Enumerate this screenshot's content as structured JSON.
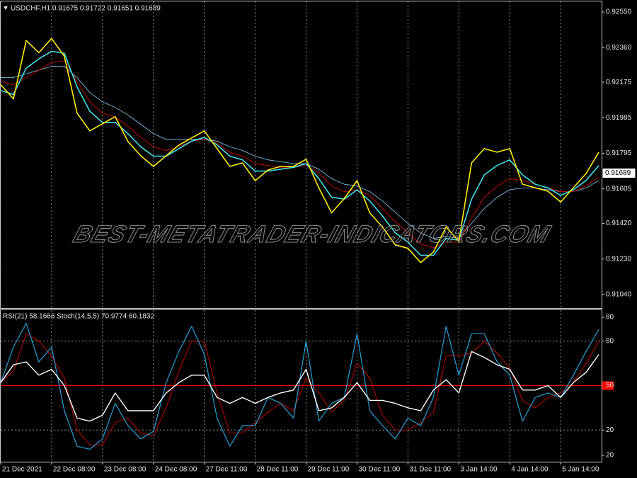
{
  "chart_data": [
    {
      "type": "line",
      "title": "USDCHF,H1  0.91675 0.91722 0.91651 0.91689",
      "watermark": "BEST-METATRADER-INDICATORS.COM",
      "last_price": 0.91689,
      "x": [
        0,
        6,
        12,
        18,
        24,
        30,
        36,
        42,
        48,
        54,
        60,
        66,
        72,
        78,
        84,
        90,
        96,
        102,
        108,
        114,
        120,
        126,
        132,
        138,
        144,
        150,
        156,
        162,
        168,
        174,
        180,
        186,
        192,
        198,
        204,
        210,
        216,
        222,
        228,
        234,
        240,
        246,
        252,
        258,
        264,
        270,
        276,
        282
      ],
      "xlim": [
        0,
        283.3
      ],
      "ylim": [
        0.90964,
        0.92607
      ],
      "yticks": [
        {
          "value": 0.9255,
          "label": "0.92550"
        },
        {
          "value": 0.9236,
          "label": "0.92360"
        },
        0.92175,
        0.91985,
        0.91795,
        0.91605,
        {
          "value": 0.9142,
          "label": "0.91420"
        },
        {
          "value": 0.9123,
          "label": "0.91230"
        },
        {
          "value": 0.9104,
          "label": "0.91040"
        }
      ],
      "grid": true,
      "series": [
        {
          "color": "#87cefa",
          "width": 0.8,
          "values": [
            0.922,
            0.922,
            0.9222,
            0.9224,
            0.9226,
            0.9226,
            0.922,
            0.9212,
            0.9207,
            0.9204,
            0.92,
            0.9195,
            0.919,
            0.9187,
            0.9187,
            0.9187,
            0.9187,
            0.9186,
            0.9183,
            0.9181,
            0.9178,
            0.9176,
            0.9175,
            0.9174,
            0.9174,
            0.9171,
            0.9166,
            0.9163,
            0.9162,
            0.9159,
            0.9154,
            0.9148,
            0.9142,
            0.9137,
            0.9134,
            0.9135,
            0.9134,
            0.9142,
            0.915,
            0.9156,
            0.916,
            0.9161,
            0.9161,
            0.916,
            0.9159,
            0.9159,
            0.9161,
            0.9165
          ]
        },
        {
          "color": "#c00000",
          "width": 1,
          "values": [
            0.9218,
            0.9216,
            0.922,
            0.9224,
            0.9228,
            0.9229,
            0.9218,
            0.9207,
            0.9201,
            0.9199,
            0.9194,
            0.9188,
            0.9183,
            0.9181,
            0.9183,
            0.9186,
            0.9187,
            0.9185,
            0.918,
            0.9178,
            0.9174,
            0.9173,
            0.9172,
            0.9172,
            0.9173,
            0.9169,
            0.9162,
            0.9159,
            0.916,
            0.9157,
            0.915,
            0.9143,
            0.9137,
            0.9131,
            0.9129,
            0.9132,
            0.9132,
            0.9145,
            0.9156,
            0.9162,
            0.9166,
            0.9165,
            0.9163,
            0.9161,
            0.9159,
            0.9159,
            0.9162,
            0.9167
          ]
        },
        {
          "color": "#40e0e8",
          "width": 1.6,
          "values": [
            0.9213,
            0.9211,
            0.9225,
            0.923,
            0.9234,
            0.9233,
            0.9215,
            0.9202,
            0.9196,
            0.9196,
            0.919,
            0.9183,
            0.9178,
            0.9178,
            0.9182,
            0.9186,
            0.9188,
            0.9184,
            0.9178,
            0.9176,
            0.917,
            0.917,
            0.9171,
            0.9172,
            0.9174,
            0.9166,
            0.9156,
            0.9155,
            0.916,
            0.9154,
            0.9146,
            0.9137,
            0.9132,
            0.9125,
            0.9125,
            0.9134,
            0.9133,
            0.9155,
            0.9168,
            0.9173,
            0.9176,
            0.9168,
            0.9163,
            0.9161,
            0.9157,
            0.916,
            0.9165,
            0.9173
          ]
        },
        {
          "color": "#ffee00",
          "width": 1.6,
          "values": [
            0.92162,
            0.92086,
            0.92398,
            0.92333,
            0.92409,
            0.92314,
            0.9201,
            0.91915,
            0.91953,
            0.91991,
            0.91858,
            0.91782,
            0.91725,
            0.91782,
            0.91839,
            0.91877,
            0.91915,
            0.9182,
            0.91725,
            0.91744,
            0.91649,
            0.91706,
            0.91725,
            0.91725,
            0.91763,
            0.9161,
            0.91477,
            0.91553,
            0.91649,
            0.91477,
            0.91401,
            0.91306,
            0.91287,
            0.91211,
            0.91268,
            0.91401,
            0.91325,
            0.91744,
            0.9182,
            0.91801,
            0.9182,
            0.9163,
            0.91611,
            0.91592,
            0.91534,
            0.91611,
            0.91687,
            0.91801
          ]
        }
      ]
    },
    {
      "type": "line",
      "title": "RSI(21) 58.1666  Stoch(14,5,5) 70.9774 60.1832",
      "x": [
        0,
        6,
        12,
        18,
        24,
        30,
        36,
        42,
        48,
        54,
        60,
        66,
        72,
        78,
        84,
        90,
        96,
        102,
        108,
        114,
        120,
        126,
        132,
        138,
        144,
        150,
        156,
        162,
        168,
        174,
        180,
        186,
        192,
        198,
        204,
        210,
        216,
        222,
        228,
        234,
        240,
        246,
        252,
        258,
        264,
        270,
        276,
        282
      ],
      "xlim": [
        0,
        283.3
      ],
      "xticks": [
        {
          "value": 0,
          "label": "21 Dec 2021"
        },
        {
          "value": 24,
          "label": "22 Dec 08:00"
        },
        {
          "value": 48,
          "label": "23 Dec 08:00"
        },
        {
          "value": 72,
          "label": "24 Dec 08:00"
        },
        {
          "value": 96,
          "label": "27 Dec 11:00"
        },
        {
          "value": 120,
          "label": "28 Dec 11:00"
        },
        {
          "value": 144,
          "label": "29 Dec 11:00"
        },
        {
          "value": 168,
          "label": "30 Dec 11:00"
        },
        {
          "value": 192,
          "label": "31 Dec 11:00"
        },
        {
          "value": 216,
          "label": "3 Jan 14:00"
        },
        {
          "value": 240,
          "label": "4 Jan 14:00"
        },
        {
          "value": 264,
          "label": "5 Jan 14:00"
        }
      ],
      "ylim": [
        -1.4,
        100.9
      ],
      "yticks": [
        20,
        50,
        80
      ],
      "y2lim": [
        17.2,
        83.1
      ],
      "y2ticks": [
        20,
        80
      ],
      "level_line": 50,
      "level_color": "#ff0000",
      "series": [
        {
          "color": "#c00000",
          "width": 1,
          "values": [
            52,
            60,
            85,
            80,
            70,
            55,
            20,
            10,
            10,
            25,
            28,
            18,
            16,
            35,
            60,
            80,
            80,
            45,
            18,
            18,
            25,
            32,
            38,
            33,
            55,
            45,
            32,
            40,
            65,
            55,
            30,
            20,
            20,
            25,
            32,
            70,
            70,
            72,
            80,
            72,
            62,
            40,
            35,
            42,
            45,
            52,
            65,
            80
          ]
        },
        {
          "color": "#2a9fd6",
          "width": 1.2,
          "values": [
            52,
            76,
            92,
            66,
            76,
            33,
            9,
            7,
            14,
            38,
            23,
            14,
            19,
            52,
            73,
            90,
            71,
            28,
            9,
            23,
            23,
            42,
            38,
            28,
            80,
            26,
            38,
            42,
            85,
            33,
            23,
            14,
            28,
            23,
            42,
            90,
            57,
            85,
            85,
            66,
            57,
            26,
            42,
            45,
            42,
            57,
            73,
            88
          ]
        },
        {
          "color": "#ffffff",
          "width": 1.4,
          "values": [
            52,
            64,
            66,
            57,
            61,
            50,
            28,
            26,
            30,
            45,
            33,
            33,
            33,
            45,
            52,
            57,
            57,
            42,
            38,
            42,
            38,
            42,
            45,
            47,
            61,
            33,
            35,
            42,
            52,
            40,
            40,
            38,
            35,
            33,
            47,
            54,
            45,
            73,
            69,
            64,
            61,
            47,
            47,
            50,
            42,
            52,
            59,
            71
          ]
        }
      ]
    }
  ]
}
